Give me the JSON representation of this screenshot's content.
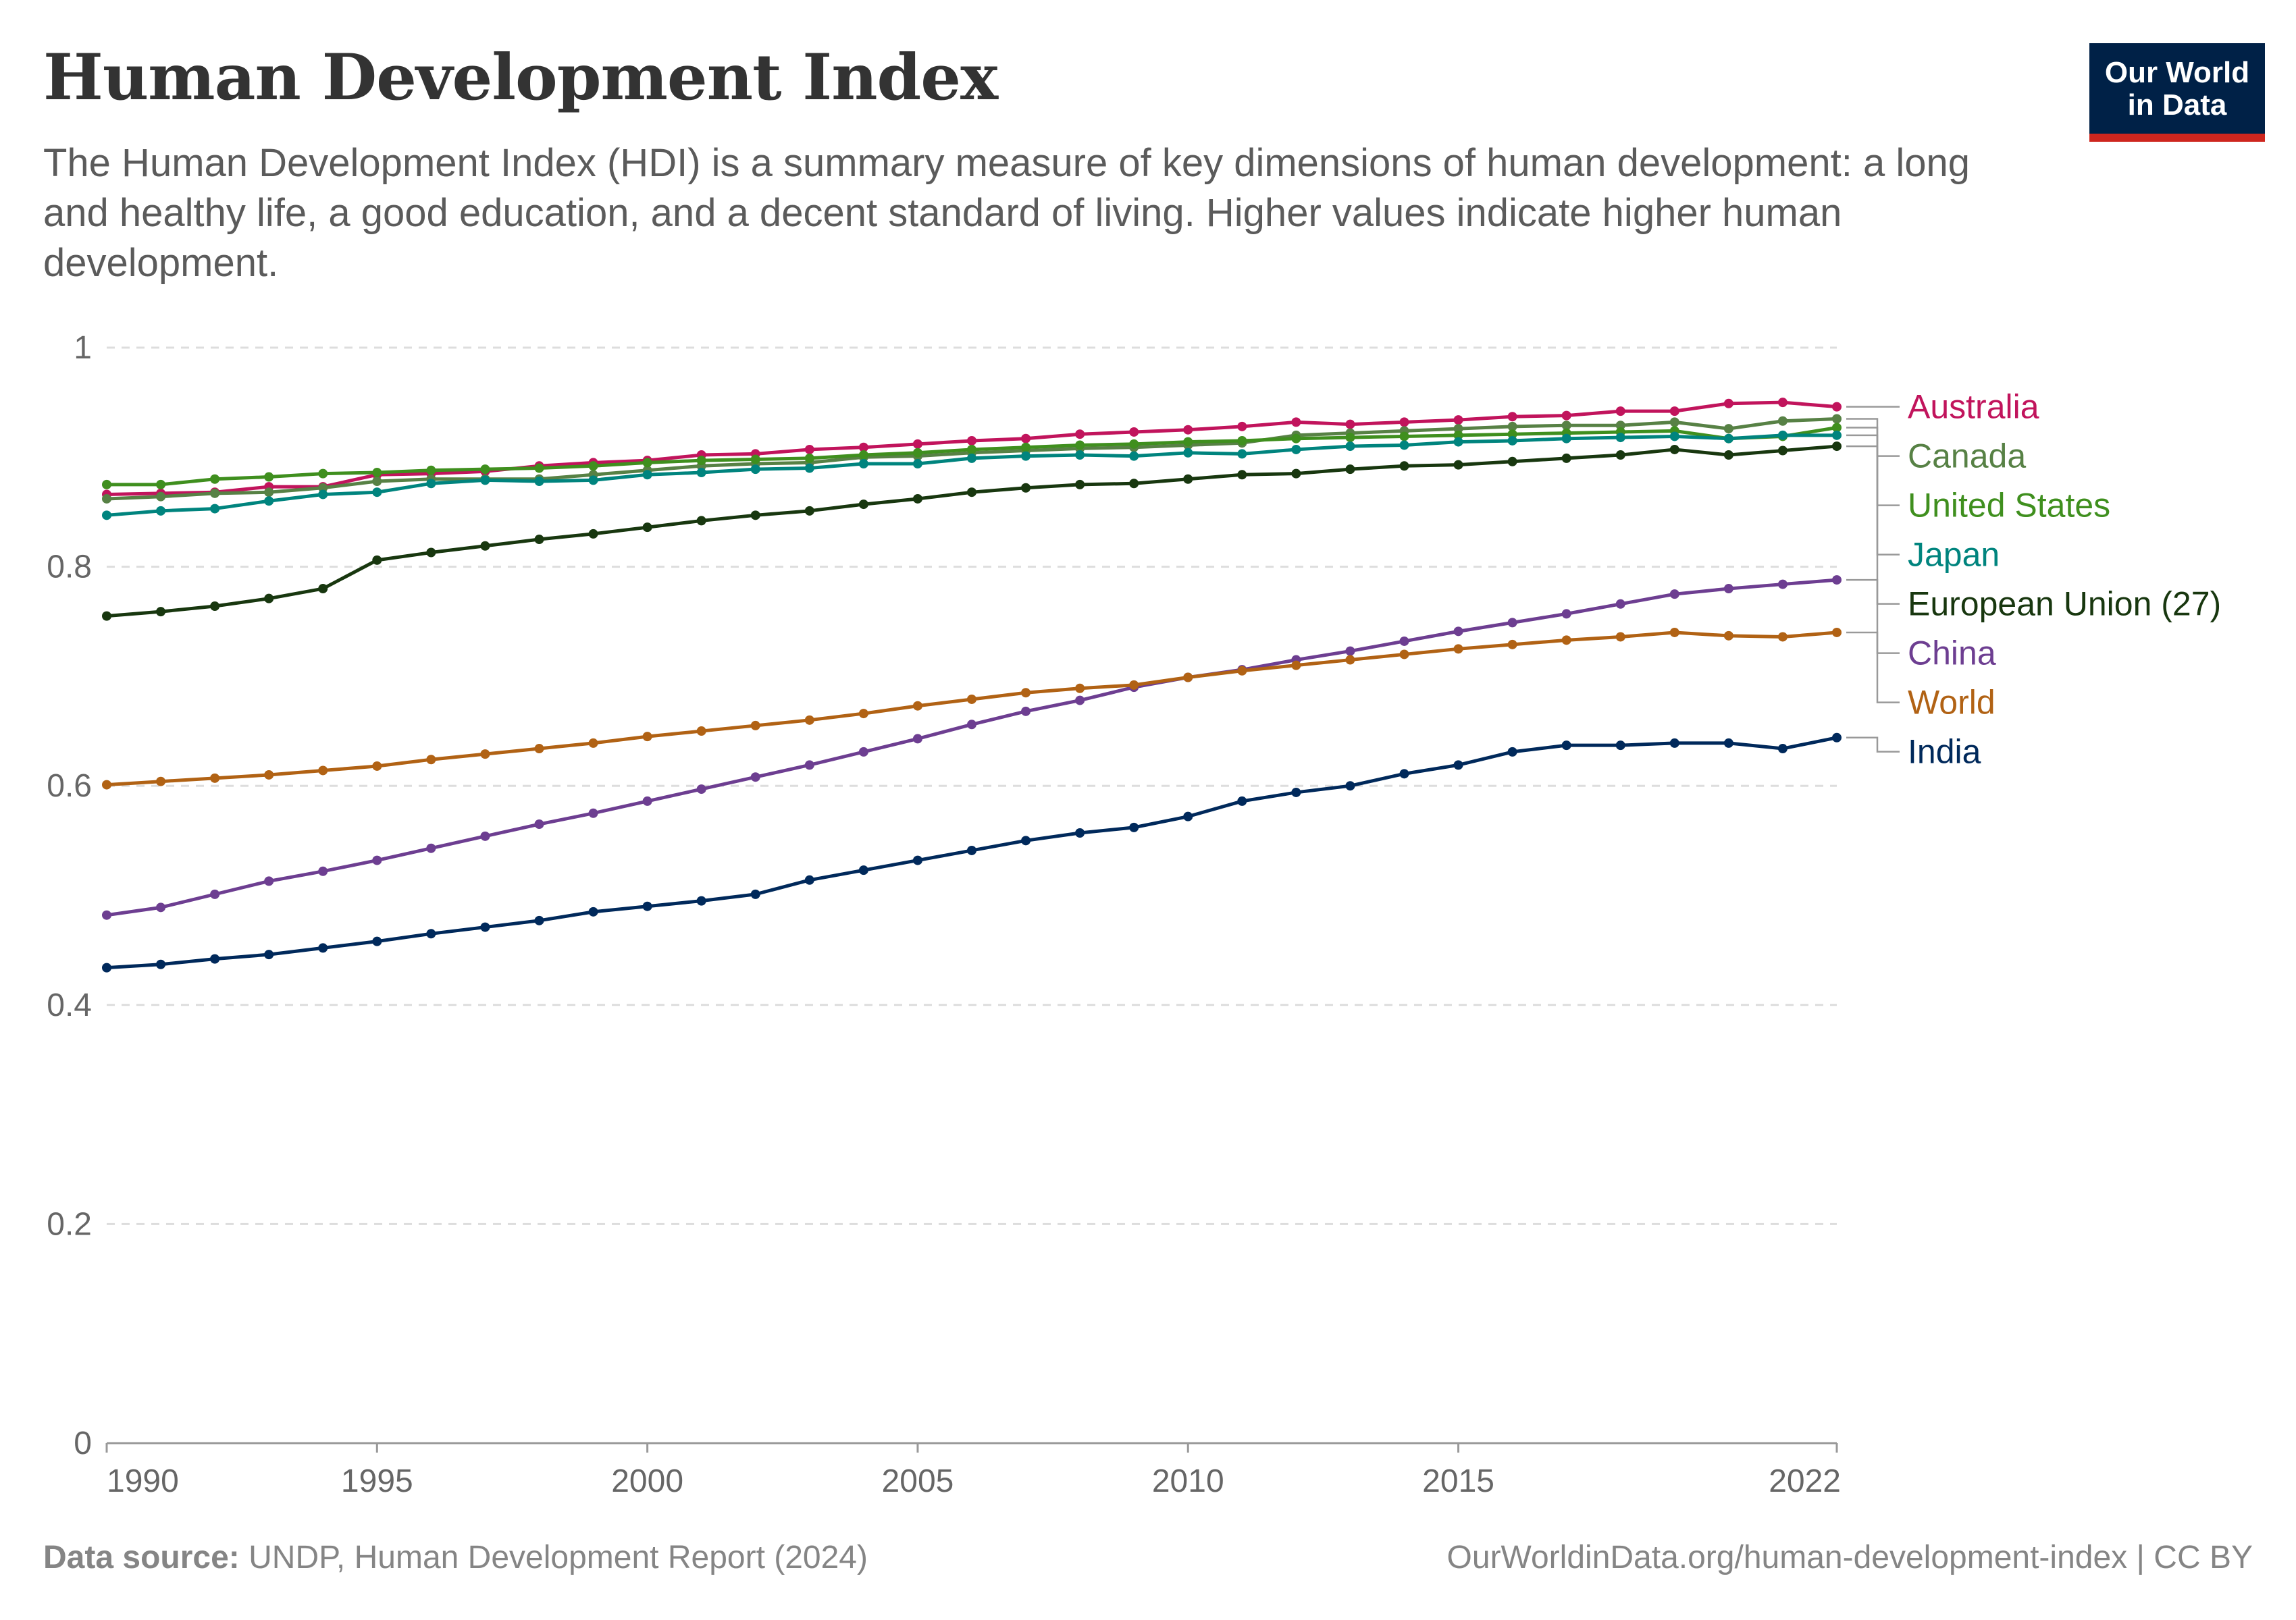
{
  "header": {
    "title": "Human Development Index",
    "subtitle": "The Human Development Index (HDI) is a summary measure of key dimensions of human development: a long and healthy life, a good education, and a decent standard of living. Higher values indicate higher human development."
  },
  "logo": {
    "line1": "Our World",
    "line2": "in Data"
  },
  "footer": {
    "source_label": "Data source:",
    "source_text": "UNDP, Human Development Report (2024)",
    "url_text": "OurWorldinData.org/human-development-index | CC BY"
  },
  "colors": {
    "logo_bg": "#002147",
    "logo_accent": "#ce261e",
    "grid": "#dddddd",
    "axis": "#999999"
  },
  "chart_data": {
    "type": "line",
    "title": "Human Development Index",
    "xlabel": "",
    "ylabel": "",
    "xlim": [
      1990,
      2022
    ],
    "ylim": [
      0,
      1
    ],
    "x_ticks": [
      1990,
      1995,
      2000,
      2005,
      2010,
      2015,
      2022
    ],
    "y_ticks": [
      0,
      0.2,
      0.4,
      0.6,
      0.8,
      1
    ],
    "y_tick_labels": [
      "0",
      "0.2",
      "0.4",
      "0.6",
      "0.8",
      "1"
    ],
    "grid": "horizontal dashed",
    "legend": "right, labels at line ends",
    "x": [
      1990,
      1991,
      1992,
      1993,
      1994,
      1995,
      1996,
      1997,
      1998,
      1999,
      2000,
      2001,
      2002,
      2003,
      2004,
      2005,
      2006,
      2007,
      2008,
      2009,
      2010,
      2011,
      2012,
      2013,
      2014,
      2015,
      2016,
      2017,
      2018,
      2019,
      2020,
      2021,
      2022
    ],
    "series": [
      {
        "name": "Australia",
        "color": "#c1145c",
        "values": [
          0.866,
          0.867,
          0.868,
          0.873,
          0.873,
          0.884,
          0.885,
          0.887,
          0.892,
          0.895,
          0.897,
          0.902,
          0.903,
          0.907,
          0.909,
          0.912,
          0.915,
          0.917,
          0.921,
          0.923,
          0.925,
          0.928,
          0.932,
          0.93,
          0.932,
          0.934,
          0.937,
          0.938,
          0.942,
          0.942,
          0.949,
          0.95,
          0.946
        ]
      },
      {
        "name": "Canada",
        "color": "#578145",
        "values": [
          0.862,
          0.864,
          0.867,
          0.868,
          0.872,
          0.878,
          0.88,
          0.88,
          0.88,
          0.884,
          0.888,
          0.892,
          0.894,
          0.895,
          0.9,
          0.901,
          0.904,
          0.906,
          0.908,
          0.909,
          0.911,
          0.913,
          0.92,
          0.922,
          0.924,
          0.926,
          0.928,
          0.929,
          0.929,
          0.932,
          0.926,
          0.933,
          0.935
        ]
      },
      {
        "name": "United States",
        "color": "#3f8f1e",
        "values": [
          0.875,
          0.875,
          0.88,
          0.882,
          0.885,
          0.886,
          0.888,
          0.889,
          0.89,
          0.892,
          0.895,
          0.897,
          0.898,
          0.899,
          0.902,
          0.904,
          0.907,
          0.909,
          0.911,
          0.912,
          0.914,
          0.915,
          0.917,
          0.918,
          0.919,
          0.92,
          0.921,
          0.922,
          0.923,
          0.924,
          0.917,
          0.919,
          0.927
        ]
      },
      {
        "name": "Japan",
        "color": "#00847e",
        "values": [
          0.847,
          0.851,
          0.853,
          0.86,
          0.866,
          0.868,
          0.876,
          0.879,
          0.878,
          0.879,
          0.884,
          0.886,
          0.889,
          0.89,
          0.894,
          0.894,
          0.899,
          0.901,
          0.902,
          0.901,
          0.904,
          0.903,
          0.907,
          0.91,
          0.911,
          0.914,
          0.915,
          0.917,
          0.918,
          0.919,
          0.917,
          0.92,
          0.92
        ]
      },
      {
        "name": "European Union (27)",
        "color": "#18370f",
        "values": [
          0.755,
          0.759,
          0.764,
          0.771,
          0.78,
          0.806,
          0.813,
          0.819,
          0.825,
          0.83,
          0.836,
          0.842,
          0.847,
          0.851,
          0.857,
          0.862,
          0.868,
          0.872,
          0.875,
          0.876,
          0.88,
          0.884,
          0.885,
          0.889,
          0.892,
          0.893,
          0.896,
          0.899,
          0.902,
          0.907,
          0.902,
          0.906,
          0.91
        ]
      },
      {
        "name": "China",
        "color": "#6d3e91",
        "values": [
          0.482,
          0.489,
          0.501,
          0.513,
          0.522,
          0.532,
          0.543,
          0.554,
          0.565,
          0.575,
          0.586,
          0.597,
          0.608,
          0.619,
          0.631,
          0.643,
          0.656,
          0.668,
          0.678,
          0.69,
          0.699,
          0.706,
          0.715,
          0.723,
          0.732,
          0.741,
          0.749,
          0.757,
          0.766,
          0.775,
          0.78,
          0.784,
          0.788
        ]
      },
      {
        "name": "World",
        "color": "#b16214",
        "values": [
          0.601,
          0.604,
          0.607,
          0.61,
          0.614,
          0.618,
          0.624,
          0.629,
          0.634,
          0.639,
          0.645,
          0.65,
          0.655,
          0.66,
          0.666,
          0.673,
          0.679,
          0.685,
          0.689,
          0.692,
          0.699,
          0.705,
          0.71,
          0.715,
          0.72,
          0.725,
          0.729,
          0.733,
          0.736,
          0.74,
          0.737,
          0.736,
          0.74
        ]
      },
      {
        "name": "India",
        "color": "#00295b",
        "values": [
          0.434,
          0.437,
          0.442,
          0.446,
          0.452,
          0.458,
          0.465,
          0.471,
          0.477,
          0.485,
          0.49,
          0.495,
          0.501,
          0.514,
          0.523,
          0.532,
          0.541,
          0.55,
          0.557,
          0.562,
          0.572,
          0.586,
          0.594,
          0.6,
          0.611,
          0.619,
          0.631,
          0.637,
          0.637,
          0.639,
          0.639,
          0.634,
          0.644
        ]
      }
    ]
  }
}
